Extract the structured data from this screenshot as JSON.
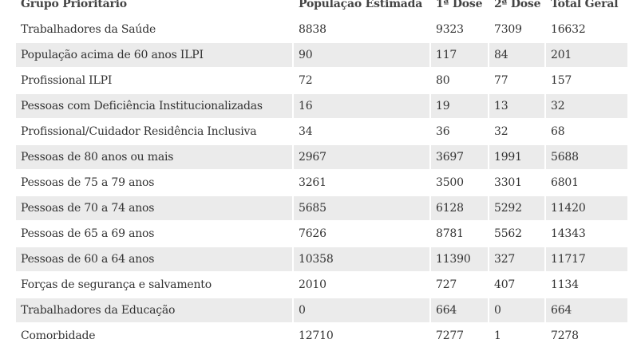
{
  "table": {
    "headers": [
      "Grupo Prioritário",
      "População Estimada",
      "1ª Dose",
      "2ª Dose",
      "Total Geral"
    ],
    "rows": [
      [
        "Trabalhadores da Saúde",
        "8838",
        "9323",
        "7309",
        "16632"
      ],
      [
        "População acima de 60 anos ILPI",
        "90",
        "117",
        "84",
        "201"
      ],
      [
        "Profissional ILPI",
        "72",
        "80",
        "77",
        "157"
      ],
      [
        "Pessoas com Deficiência Institucionalizadas",
        "16",
        "19",
        "13",
        "32"
      ],
      [
        "Profissional/Cuidador Residência Inclusiva",
        "34",
        "36",
        "32",
        "68"
      ],
      [
        "Pessoas de 80 anos ou mais",
        "2967",
        "3697",
        "1991",
        "5688"
      ],
      [
        "Pessoas de 75 a 79 anos",
        "3261",
        "3500",
        "3301",
        "6801"
      ],
      [
        "Pessoas de 70 a 74 anos",
        "5685",
        "6128",
        "5292",
        "11420"
      ],
      [
        "Pessoas de 65 a 69 anos",
        "7626",
        "8781",
        "5562",
        "14343"
      ],
      [
        "Pessoas de 60 a 64 anos",
        "10358",
        "11390",
        "327",
        "11717"
      ],
      [
        "Forças de segurança e salvamento",
        "2010",
        "727",
        "407",
        "1134"
      ],
      [
        "Trabalhadores da Educação",
        "0",
        "664",
        "0",
        "664"
      ],
      [
        "Comorbidade",
        "12710",
        "7277",
        "1",
        "7278"
      ]
    ]
  }
}
